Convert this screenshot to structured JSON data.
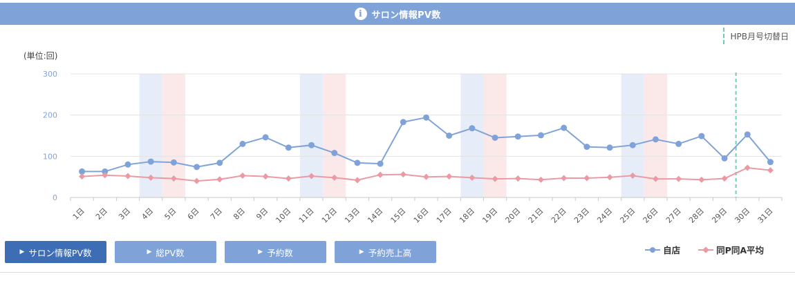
{
  "header": {
    "title": "サロン情報PV数",
    "icon": "info-icon"
  },
  "hpb_marker": {
    "label": "HPB月号切替日",
    "color": "#6fcab8"
  },
  "unit_label": "(単位:回)",
  "tabs": [
    {
      "label": "サロン情報PV数",
      "active": true
    },
    {
      "label": "総PV数",
      "active": false
    },
    {
      "label": "予約数",
      "active": false
    },
    {
      "label": "予約売上高",
      "active": false
    }
  ],
  "colors": {
    "header": "#7fa3d8",
    "tab_active": "#3d6db5",
    "tab": "#7fa3d8",
    "self_series": "#7fa3d8",
    "avg_series": "#eb9aa3",
    "weekend_blue": "#e6ecf8",
    "weekend_pink": "#fbe9ea"
  },
  "chart_data": {
    "type": "line",
    "categories": [
      "1日",
      "2日",
      "3日",
      "4日",
      "5日",
      "6日",
      "7日",
      "8日",
      "9日",
      "10日",
      "11日",
      "12日",
      "13日",
      "14日",
      "15日",
      "16日",
      "17日",
      "18日",
      "19日",
      "20日",
      "21日",
      "22日",
      "23日",
      "24日",
      "25日",
      "26日",
      "27日",
      "28日",
      "29日",
      "30日",
      "31日"
    ],
    "series": [
      {
        "name": "自店",
        "marker": "circle",
        "values": [
          63,
          63,
          80,
          87,
          85,
          74,
          84,
          130,
          146,
          121,
          127,
          108,
          84,
          82,
          183,
          194,
          150,
          168,
          145,
          148,
          151,
          169,
          123,
          121,
          127,
          141,
          130,
          149,
          95,
          153,
          86
        ]
      },
      {
        "name": "同P同A平均",
        "marker": "diamond",
        "values": [
          51,
          54,
          52,
          48,
          46,
          40,
          44,
          53,
          51,
          46,
          52,
          48,
          42,
          55,
          56,
          50,
          51,
          48,
          45,
          46,
          43,
          47,
          47,
          49,
          53,
          45,
          45,
          43,
          46,
          72,
          66
        ]
      }
    ],
    "yticks": [
      0,
      100,
      200,
      300
    ],
    "ylim": [
      0,
      300
    ],
    "grid": true,
    "legend_position": "bottom-right",
    "shaded_days": [
      {
        "day": "4日",
        "kind": "blue"
      },
      {
        "day": "5日",
        "kind": "pink"
      },
      {
        "day": "11日",
        "kind": "blue"
      },
      {
        "day": "12日",
        "kind": "pink"
      },
      {
        "day": "18日",
        "kind": "blue"
      },
      {
        "day": "19日",
        "kind": "pink"
      },
      {
        "day": "25日",
        "kind": "blue"
      },
      {
        "day": "26日",
        "kind": "pink"
      }
    ],
    "hpb_switch_day": "30日"
  }
}
